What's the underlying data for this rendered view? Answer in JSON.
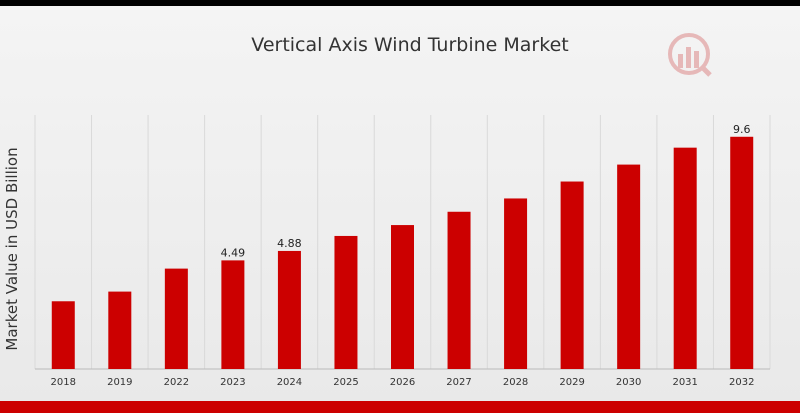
{
  "chart_data": {
    "type": "bar",
    "title": "Vertical Axis Wind Turbine Market",
    "xlabel": "",
    "ylabel": "Market Value in USD Billion",
    "categories": [
      "2018",
      "2019",
      "2022",
      "2023",
      "2024",
      "2025",
      "2026",
      "2027",
      "2028",
      "2029",
      "2030",
      "2031",
      "2032"
    ],
    "values": [
      2.8,
      3.2,
      4.15,
      4.49,
      4.88,
      5.5,
      5.95,
      6.5,
      7.05,
      7.75,
      8.45,
      9.15,
      9.6
    ],
    "data_labels": {
      "3": "4.49",
      "4": "4.88",
      "12": "9.6"
    },
    "ylim": [
      0,
      10.5
    ],
    "grid": "vertical",
    "legend": "none",
    "bar_color": "#cc0000"
  },
  "colors": {
    "accent": "#cc0000",
    "background": "#f2f2f2"
  }
}
